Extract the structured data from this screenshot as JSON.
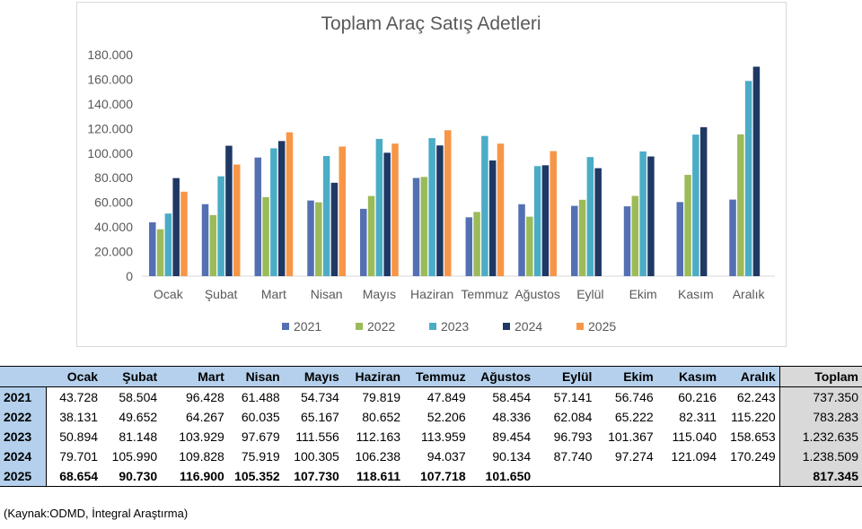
{
  "chart_data": {
    "type": "bar",
    "title": "Toplam Araç Satış Adetleri",
    "categories": [
      "Ocak",
      "Şubat",
      "Mart",
      "Nisan",
      "Mayıs",
      "Haziran",
      "Temmuz",
      "Ağustos",
      "Eylül",
      "Ekim",
      "Kasım",
      "Aralık"
    ],
    "series": [
      {
        "name": "2021",
        "color": "#5470b3",
        "values": [
          43728,
          58504,
          96428,
          61488,
          54734,
          79819,
          47849,
          58454,
          57141,
          56746,
          60216,
          62243
        ]
      },
      {
        "name": "2022",
        "color": "#9bbb59",
        "values": [
          38131,
          49652,
          64267,
          60035,
          65167,
          80652,
          52206,
          48336,
          62084,
          65222,
          82311,
          115220
        ]
      },
      {
        "name": "2023",
        "color": "#4bacc6",
        "values": [
          50894,
          81148,
          103929,
          97679,
          111556,
          112163,
          113959,
          89454,
          96793,
          101367,
          115040,
          158653
        ]
      },
      {
        "name": "2024",
        "color": "#1f3864",
        "values": [
          79701,
          105990,
          109828,
          75919,
          100305,
          106238,
          94037,
          90134,
          87740,
          97274,
          121094,
          170249
        ]
      },
      {
        "name": "2025",
        "color": "#f79646",
        "values": [
          68654,
          90730,
          116900,
          105352,
          107730,
          118611,
          107718,
          101650,
          null,
          null,
          null,
          null
        ]
      }
    ],
    "ylim": [
      0,
      180000
    ],
    "yticks": [
      "0",
      "20.000",
      "40.000",
      "60.000",
      "80.000",
      "100.000",
      "120.000",
      "140.000",
      "160.000",
      "180.000"
    ],
    "legend": "bottom",
    "grid": false
  },
  "table": {
    "headers": [
      "",
      "Ocak",
      "Şubat",
      "Mart",
      "Nisan",
      "Mayıs",
      "Haziran",
      "Temmuz",
      "Ağustos",
      "Eylül",
      "Ekim",
      "Kasım",
      "Aralık",
      "Toplam"
    ],
    "rows": [
      [
        "2021",
        "43.728",
        "58.504",
        "96.428",
        "61.488",
        "54.734",
        "79.819",
        "47.849",
        "58.454",
        "57.141",
        "56.746",
        "60.216",
        "62.243",
        "737.350"
      ],
      [
        "2022",
        "38.131",
        "49.652",
        "64.267",
        "60.035",
        "65.167",
        "80.652",
        "52.206",
        "48.336",
        "62.084",
        "65.222",
        "82.311",
        "115.220",
        "783.283"
      ],
      [
        "2023",
        "50.894",
        "81.148",
        "103.929",
        "97.679",
        "111.556",
        "112.163",
        "113.959",
        "89.454",
        "96.793",
        "101.367",
        "115.040",
        "158.653",
        "1.232.635"
      ],
      [
        "2024",
        "79.701",
        "105.990",
        "109.828",
        "75.919",
        "100.305",
        "106.238",
        "94.037",
        "90.134",
        "87.740",
        "97.274",
        "121.094",
        "170.249",
        "1.238.509"
      ],
      [
        "2025",
        "68.654",
        "90.730",
        "116.900",
        "105.352",
        "107.730",
        "118.611",
        "107.718",
        "101.650",
        "",
        "",
        "",
        "",
        "817.345"
      ]
    ]
  },
  "source_note": "(Kaynak:ODMD, İntegral Araştırma)"
}
